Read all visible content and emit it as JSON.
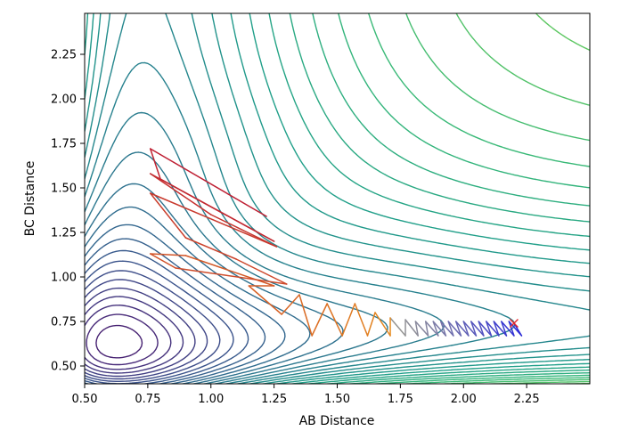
{
  "chart_data": {
    "type": "contour",
    "title": "",
    "xlabel": "AB Distance",
    "ylabel": "BC Distance",
    "xlim": [
      0.5,
      2.5
    ],
    "ylim": [
      0.4,
      2.48
    ],
    "xticks": [
      0.5,
      0.75,
      1.0,
      1.25,
      1.5,
      1.75,
      2.0,
      2.25
    ],
    "xtick_labels": [
      "0.50",
      "0.75",
      "1.00",
      "1.25",
      "1.50",
      "1.75",
      "2.00",
      "2.25"
    ],
    "yticks": [
      0.5,
      0.75,
      1.0,
      1.25,
      1.5,
      1.75,
      2.0,
      2.25
    ],
    "ytick_labels": [
      "0.50",
      "0.75",
      "1.00",
      "1.25",
      "1.50",
      "1.75",
      "2.00",
      "2.25"
    ],
    "grid": false,
    "legend": "none",
    "colormap": "viridis",
    "start_marker": {
      "x": 2.2,
      "y": 0.74,
      "symbol": "x",
      "color": "#e8262a"
    },
    "trajectories": [
      {
        "color_from": "#2a2ad8",
        "color_to": "#f2f25a",
        "points": [
          [
            2.2,
            0.74
          ],
          [
            2.23,
            0.67
          ],
          [
            2.18,
            0.75
          ],
          [
            2.2,
            0.67
          ],
          [
            2.15,
            0.75
          ],
          [
            2.17,
            0.67
          ],
          [
            2.12,
            0.75
          ],
          [
            2.14,
            0.67
          ],
          [
            2.09,
            0.75
          ],
          [
            2.11,
            0.67
          ],
          [
            2.06,
            0.75
          ],
          [
            2.08,
            0.67
          ],
          [
            2.03,
            0.75
          ],
          [
            2.05,
            0.67
          ],
          [
            2.0,
            0.75
          ],
          [
            2.02,
            0.67
          ],
          [
            1.97,
            0.75
          ],
          [
            1.99,
            0.67
          ],
          [
            1.94,
            0.75
          ],
          [
            1.96,
            0.67
          ],
          [
            1.91,
            0.75
          ],
          [
            1.93,
            0.67
          ],
          [
            1.88,
            0.75
          ],
          [
            1.9,
            0.67
          ],
          [
            1.85,
            0.75
          ],
          [
            1.86,
            0.67
          ],
          [
            1.81,
            0.75
          ],
          [
            1.82,
            0.67
          ],
          [
            1.77,
            0.76
          ],
          [
            1.77,
            0.67
          ],
          [
            1.71,
            0.77
          ],
          [
            1.71,
            0.67
          ],
          [
            1.65,
            0.8
          ],
          [
            1.62,
            0.67
          ],
          [
            1.57,
            0.85
          ],
          [
            1.52,
            0.67
          ],
          [
            1.46,
            0.85
          ],
          [
            1.4,
            0.67
          ],
          [
            1.35,
            0.9
          ],
          [
            1.28,
            0.79
          ],
          [
            1.15,
            0.95
          ],
          [
            1.25,
            0.95
          ],
          [
            0.9,
            1.12
          ],
          [
            0.76,
            1.13
          ],
          [
            0.86,
            1.05
          ],
          [
            1.3,
            0.96
          ],
          [
            1.1,
            1.1
          ],
          [
            0.9,
            1.22
          ],
          [
            0.76,
            1.47
          ],
          [
            1.26,
            1.17
          ],
          [
            1.0,
            1.35
          ],
          [
            0.76,
            1.58
          ],
          [
            1.25,
            1.2
          ],
          [
            0.8,
            1.55
          ],
          [
            0.76,
            1.72
          ],
          [
            1.22,
            1.34
          ]
        ]
      }
    ]
  }
}
